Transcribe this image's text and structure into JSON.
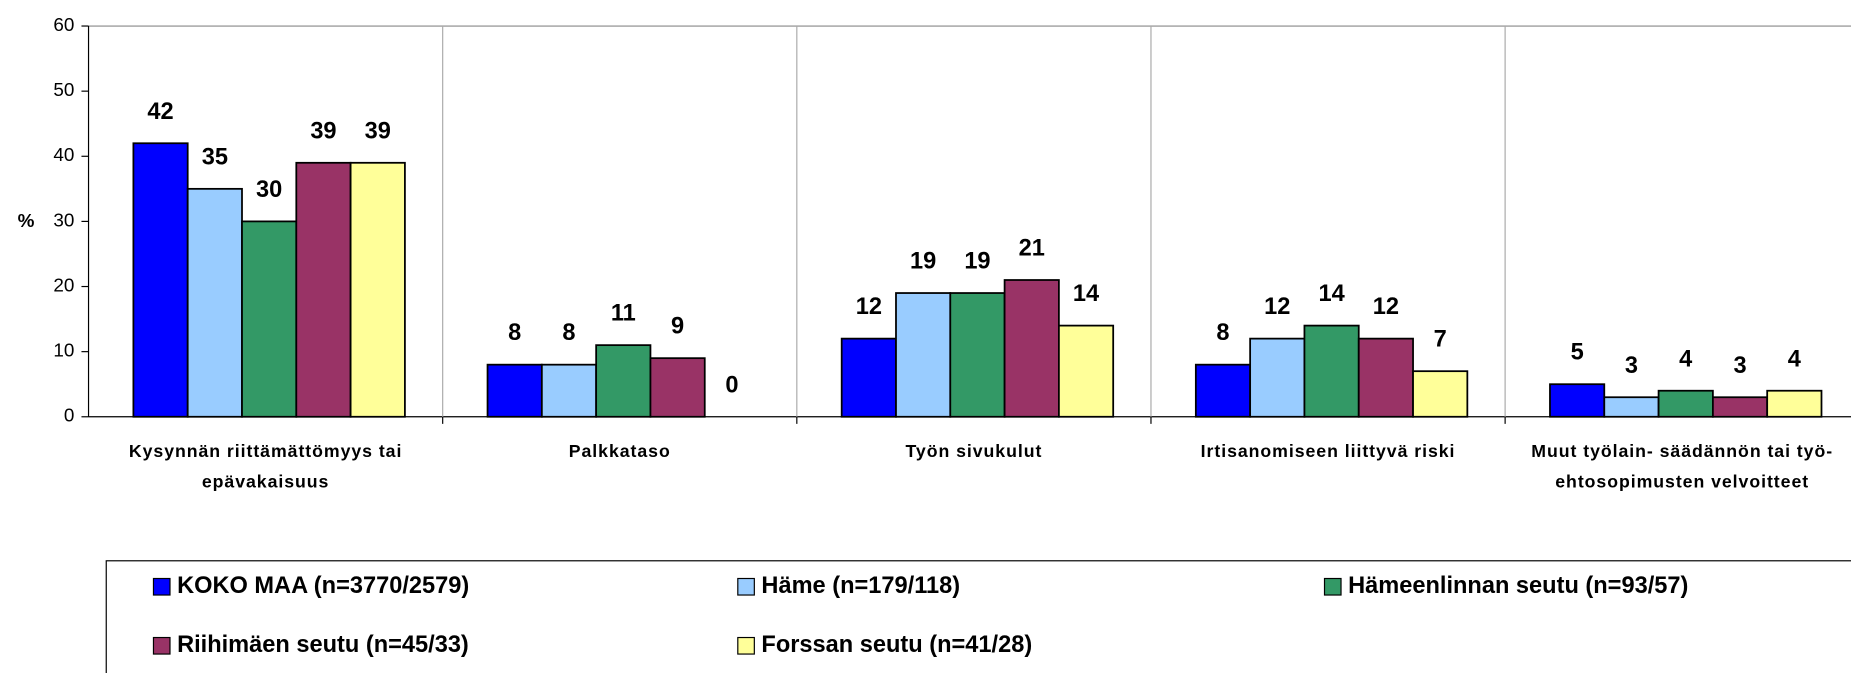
{
  "chart_data": {
    "type": "bar",
    "y_label": "%",
    "categories": [
      "Kysynnän riittämättömyys tai epävakaisuus",
      "Palkkataso",
      "Työn sivukulut",
      "Irtisanomiseen liittyvä riski",
      "Muut työlain- säädännön tai työ- ehtosopimusten velvoitteet"
    ],
    "series": [
      {
        "name": "KOKO MAA (n=3770/2579)",
        "color": "#0000ff",
        "values": [
          42,
          8,
          12,
          8,
          5
        ]
      },
      {
        "name": "Häme (n=179/118)",
        "color": "#99ccff",
        "values": [
          35,
          8,
          19,
          12,
          3
        ]
      },
      {
        "name": "Hämeenlinnan seutu (n=93/57)",
        "color": "#339966",
        "values": [
          30,
          11,
          19,
          14,
          4
        ]
      },
      {
        "name": "Riihimäen seutu (n=45/33)",
        "color": "#993366",
        "values": [
          39,
          9,
          21,
          12,
          3
        ]
      },
      {
        "name": "Forssan seutu (n=41/28)",
        "color": "#ffff99",
        "values": [
          39,
          0,
          14,
          7,
          4
        ]
      }
    ],
    "ylim": [
      0,
      60
    ],
    "yticks": [
      0,
      10,
      20,
      30,
      40,
      50,
      60
    ],
    "legend": "bottom"
  }
}
